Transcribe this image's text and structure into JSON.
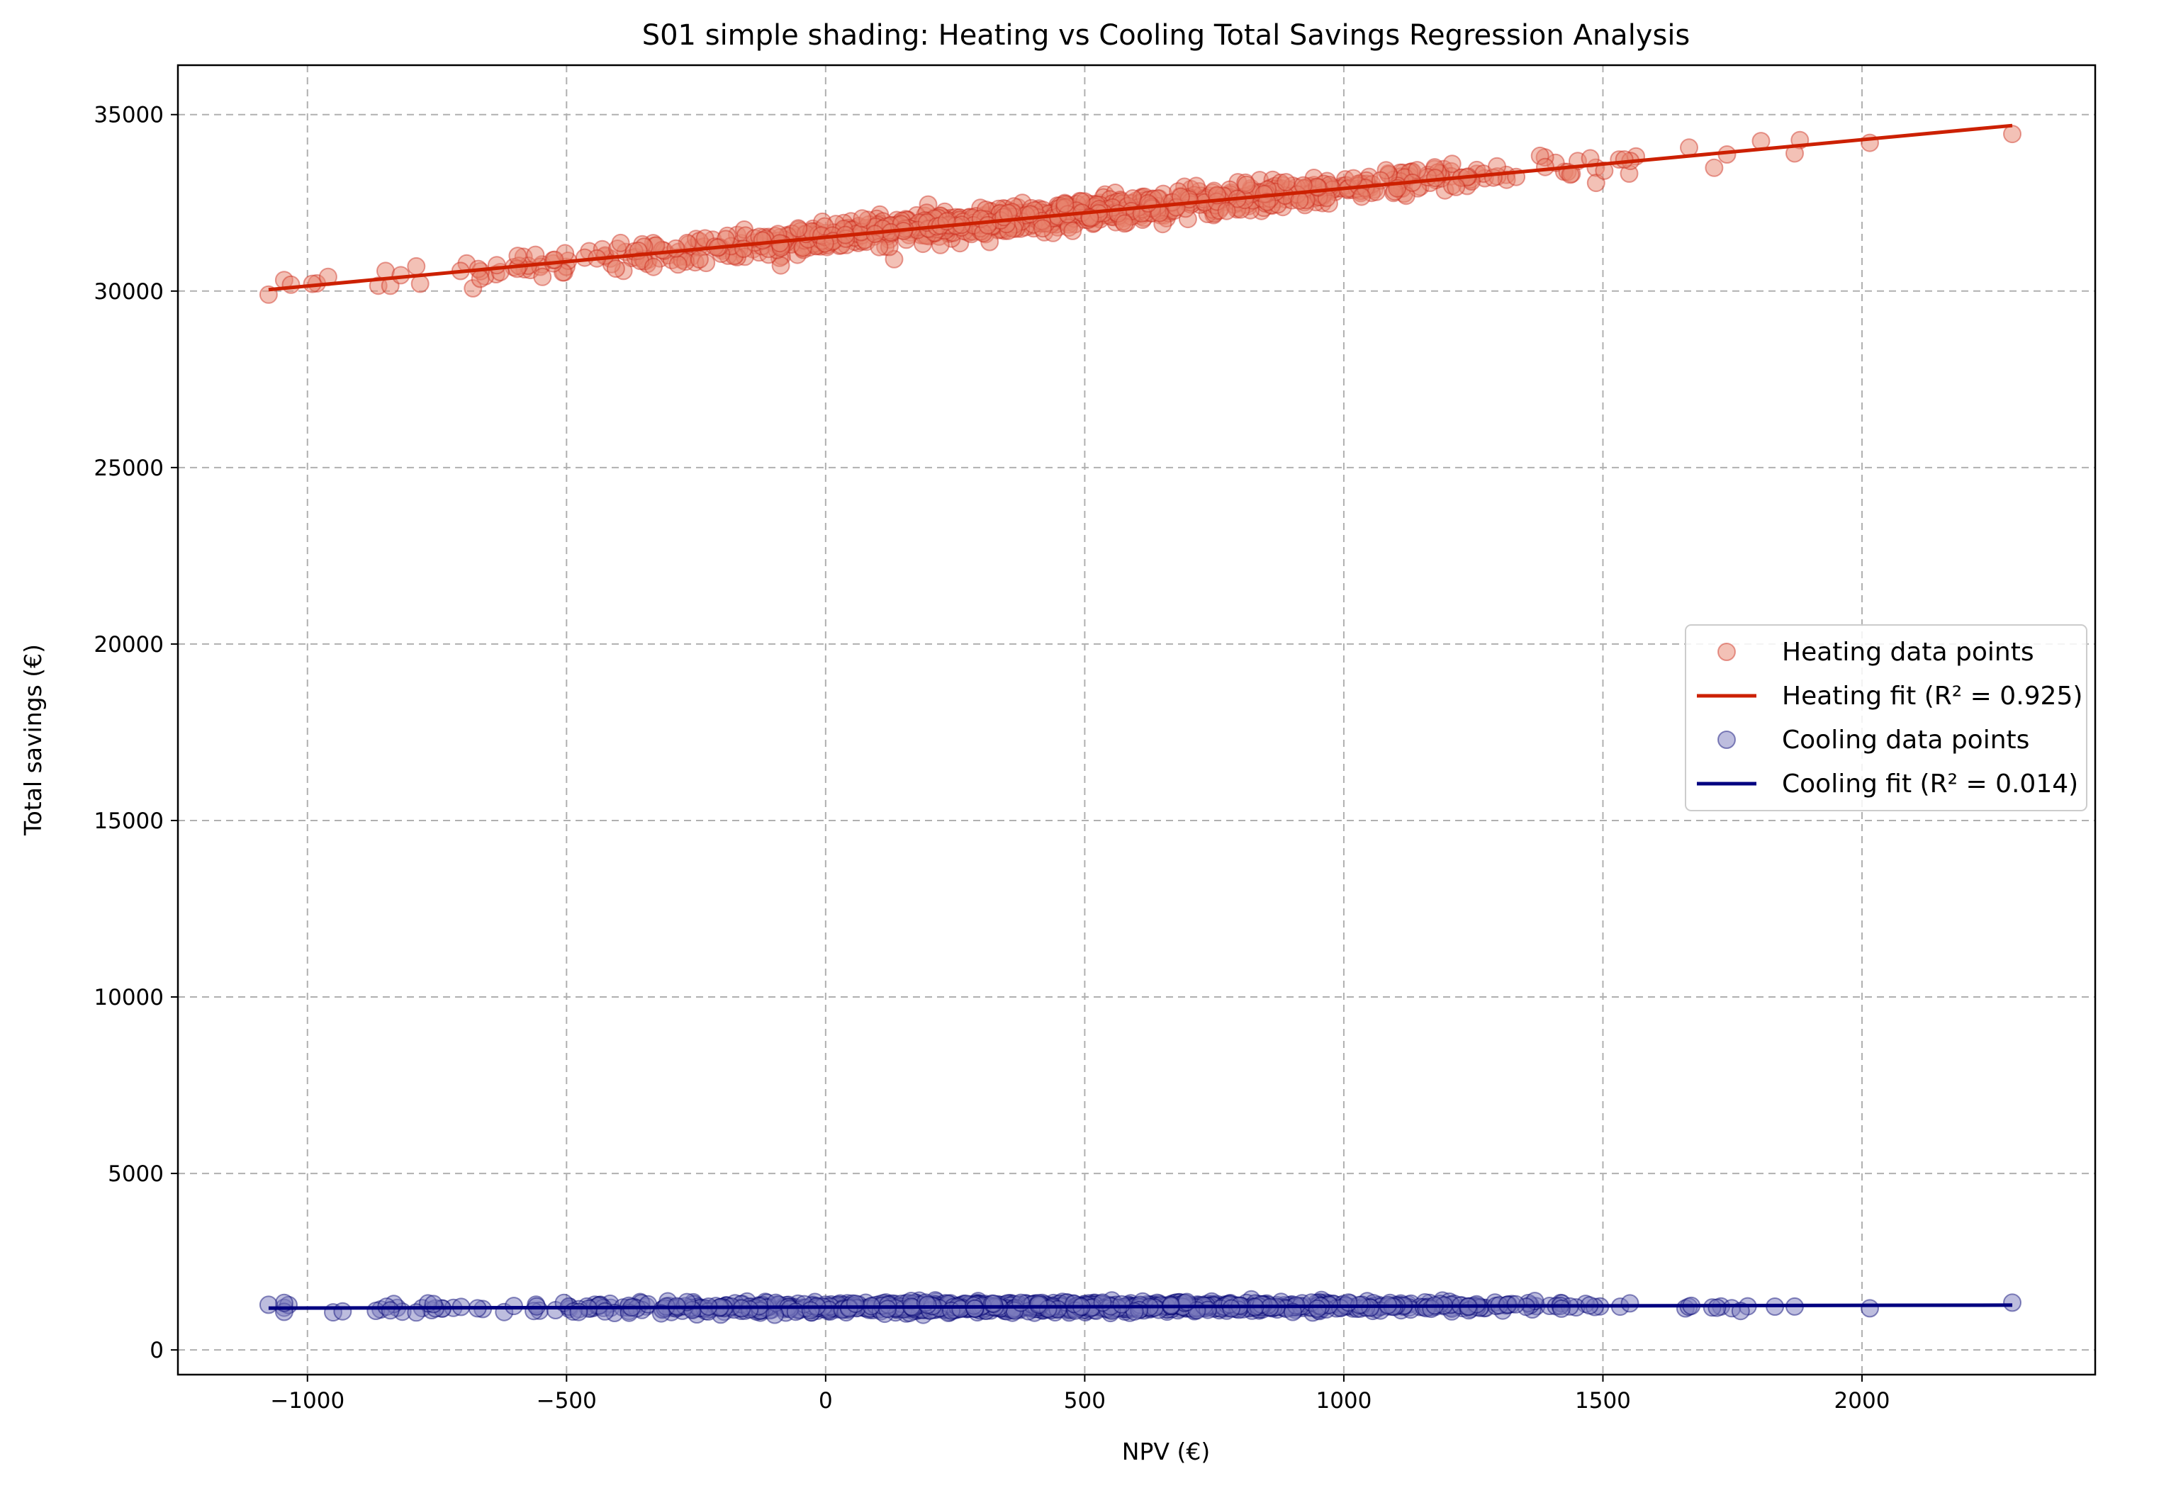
{
  "chart_data": {
    "type": "scatter",
    "title": "S01 simple shading: Heating vs Cooling Total Savings Regression Analysis",
    "xlabel": "NPV (€)",
    "ylabel": "Total savings (€)",
    "xlim": [
      -1250,
      2450
    ],
    "ylim": [
      -700,
      36400
    ],
    "xticks": [
      -1000,
      -500,
      0,
      500,
      1000,
      1500,
      2000
    ],
    "xtick_labels": [
      "−1000",
      "−500",
      "0",
      "500",
      "1000",
      "1500",
      "2000"
    ],
    "yticks": [
      0,
      5000,
      10000,
      15000,
      20000,
      25000,
      30000,
      35000
    ],
    "ytick_labels": [
      "0",
      "5000",
      "10000",
      "15000",
      "20000",
      "25000",
      "30000",
      "35000"
    ],
    "grid": true,
    "legend_position": "right",
    "x_range_observed": [
      -1075,
      2290
    ],
    "point_count_approx": 1000,
    "series": [
      {
        "name": "Heating data points",
        "kind": "scatter",
        "color": "#e8836e",
        "edge_color": "#cc2a1a",
        "alpha": 0.5,
        "fit": {
          "slope": 1.38,
          "intercept": 31525
        },
        "spread": 200,
        "outliers": [
          {
            "x": -1075,
            "y": 29900
          },
          {
            "x": 2290,
            "y": 34450
          },
          {
            "x": 2015,
            "y": 34200
          },
          {
            "x": 1805,
            "y": 34250
          },
          {
            "x": 1870,
            "y": 33900
          },
          {
            "x": -840,
            "y": 30150
          },
          {
            "x": -820,
            "y": 30450
          },
          {
            "x": -790,
            "y": 30700
          }
        ]
      },
      {
        "name": "Heating fit (R² = 0.925)",
        "kind": "line",
        "color": "#cc2000",
        "x": [
          -1075,
          2290
        ],
        "y": [
          30040,
          34690
        ]
      },
      {
        "name": "Cooling data points",
        "kind": "scatter",
        "color": "#7b7bbd",
        "edge_color": "#000070",
        "alpha": 0.5,
        "fit": {
          "slope": 0.025,
          "intercept": 1210
        },
        "spread": 70,
        "outliers": [
          {
            "x": -1075,
            "y": 1280
          },
          {
            "x": 2290,
            "y": 1340
          },
          {
            "x": 2015,
            "y": 1180
          },
          {
            "x": 1870,
            "y": 1230
          },
          {
            "x": -840,
            "y": 1120
          },
          {
            "x": -790,
            "y": 1060
          }
        ]
      },
      {
        "name": "Cooling fit (R² = 0.014)",
        "kind": "line",
        "color": "#000080",
        "x": [
          -1075,
          2290
        ],
        "y": [
          1185,
          1270
        ]
      }
    ]
  }
}
